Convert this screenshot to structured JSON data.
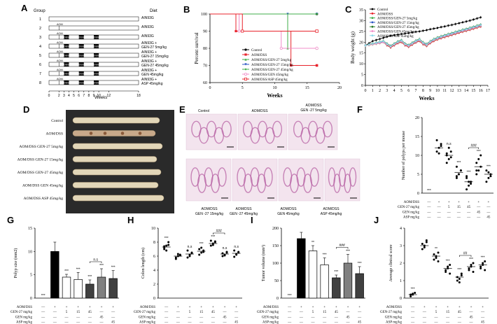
{
  "panel_letters": [
    "A",
    "B",
    "C",
    "D",
    "E",
    "F",
    "G",
    "H",
    "I",
    "J"
  ],
  "schematic": {
    "group_header": "Group",
    "diet_header": "Diet",
    "xlabel": "Weeks",
    "ticks": [
      "0",
      "2",
      "3",
      "4",
      "5",
      "6",
      "7",
      "8",
      "9",
      "10",
      "12",
      "18"
    ],
    "tick_weeks": [
      0,
      2,
      3,
      4,
      5,
      6,
      7,
      8,
      9,
      10,
      12,
      18
    ],
    "aom_label": "AOM",
    "dss_label": "DSS",
    "dss_windows": [
      [
        3,
        4
      ],
      [
        6,
        7
      ],
      [
        9,
        10
      ]
    ],
    "groups": [
      {
        "num": "1",
        "aom": false,
        "dss": false,
        "diet": [
          "AIN93G"
        ]
      },
      {
        "num": "2",
        "aom": true,
        "dss": false,
        "diet": [
          "AIN93G"
        ]
      },
      {
        "num": "3",
        "aom": true,
        "dss": true,
        "diet": [
          "AIN93G"
        ]
      },
      {
        "num": "4",
        "aom": true,
        "dss": true,
        "diet": [
          "AIN93G +",
          "GEN-27 5mg/kg"
        ]
      },
      {
        "num": "5",
        "aom": true,
        "dss": true,
        "diet": [
          "AIN93G +",
          "GEN-27 15mg/kg"
        ]
      },
      {
        "num": "6",
        "aom": true,
        "dss": true,
        "diet": [
          "AIN93G +",
          "GEN-27 45mg/kg"
        ]
      },
      {
        "num": "7",
        "aom": true,
        "dss": true,
        "diet": [
          "AIN93G +",
          "GEN 45mg/kg"
        ]
      },
      {
        "num": "8",
        "aom": true,
        "dss": true,
        "diet": [
          "AIN93G +",
          "ASP 45mg/kg"
        ]
      }
    ]
  },
  "chart_data": [
    {
      "id": "B",
      "type": "line",
      "step": true,
      "xlabel": "Weeks",
      "ylabel": "Percent survival",
      "xlim": [
        0,
        20
      ],
      "ylim": [
        60,
        100
      ],
      "xticks": [
        0,
        5,
        10,
        15,
        20
      ],
      "yticks": [
        60,
        70,
        80,
        90,
        100
      ],
      "series": [
        {
          "name": "Control",
          "color": "#000000",
          "marker": "circle",
          "x": [
            0,
            16.5
          ],
          "y": [
            100,
            100
          ]
        },
        {
          "name": "AOM/DSS",
          "color": "#e8242c",
          "marker": "square",
          "x": [
            0,
            4,
            4,
            12.5,
            12.5,
            16.5
          ],
          "y": [
            100,
            100,
            90,
            90,
            70,
            70
          ]
        },
        {
          "name": "AOM/DSS/GEN-27 5mg/kg",
          "color": "#3fae49",
          "marker": "triangle",
          "x": [
            0,
            12,
            12,
            16.5
          ],
          "y": [
            100,
            100,
            80,
            80
          ]
        },
        {
          "name": "AOM/DSS/GEN-27 15mg/kg",
          "color": "#2b56c3",
          "marker": "triangle-down",
          "x": [
            0,
            12,
            12,
            16.5
          ],
          "y": [
            100,
            100,
            100,
            100
          ]
        },
        {
          "name": "AOM/DSS/GEN-27 45mg/kg",
          "color": "#3fae49",
          "marker": "diamond",
          "x": [
            0,
            16.5
          ],
          "y": [
            100,
            100
          ]
        },
        {
          "name": "AOM/DSS/GEN 45mg/kg",
          "color": "#f08cc8",
          "marker": "circle-open",
          "x": [
            0,
            4.5,
            4.5,
            11,
            11,
            16.5
          ],
          "y": [
            100,
            100,
            90,
            90,
            80,
            80
          ]
        },
        {
          "name": "AOM/DSS/ASP 45mg/kg",
          "color": "#e8242c",
          "marker": "square-open",
          "x": [
            0,
            5,
            5,
            16.5
          ],
          "y": [
            100,
            100,
            90,
            90
          ]
        }
      ]
    },
    {
      "id": "C",
      "type": "line",
      "xlabel": "Weeks",
      "ylabel": "Body weight (g)",
      "xlim": [
        0,
        17
      ],
      "ylim": [
        0,
        35
      ],
      "xticks": [
        0,
        1,
        2,
        3,
        4,
        5,
        6,
        7,
        8,
        9,
        10,
        11,
        12,
        13,
        14,
        15,
        16,
        17
      ],
      "yticks": [
        0,
        5,
        10,
        15,
        20,
        25,
        30,
        35
      ],
      "x": [
        0,
        0.5,
        1,
        1.5,
        2,
        2.5,
        3,
        3.5,
        4,
        4.5,
        5,
        5.5,
        6,
        6.5,
        7,
        7.5,
        8,
        8.5,
        9,
        9.5,
        10,
        10.5,
        11,
        11.5,
        12,
        12.5,
        13,
        13.5,
        14,
        14.5,
        15,
        15.5,
        16
      ],
      "series": [
        {
          "name": "Control",
          "color": "#000000",
          "values": [
            18.5,
            19.5,
            20.5,
            21,
            21.5,
            22,
            22.5,
            23,
            23.3,
            23.5,
            23.8,
            24,
            24.2,
            24.5,
            24.8,
            25,
            25.3,
            25.6,
            26,
            26.3,
            26.6,
            27,
            27.3,
            27.7,
            28,
            28.4,
            28.8,
            29.2,
            29.6,
            30,
            30.5,
            31,
            31.5
          ]
        },
        {
          "name": "AOM/DSS",
          "color": "#e8242c",
          "values": [
            18.5,
            18.7,
            19,
            19.3,
            19.6,
            20,
            18.5,
            17.5,
            18.5,
            19.5,
            20,
            18.5,
            17.8,
            18.8,
            19.8,
            20.5,
            19,
            18.2,
            19.5,
            20.5,
            21.2,
            21.8,
            22.3,
            22.8,
            23.3,
            23.8,
            24.3,
            24.8,
            25.2,
            25.7,
            26.2,
            26.7,
            27.2
          ]
        },
        {
          "name": "AOM/DSS/GEN-27 5mg/kg",
          "color": "#3fae49",
          "values": [
            18.5,
            18.8,
            19.1,
            19.4,
            19.7,
            20,
            18.8,
            17.8,
            18.8,
            19.8,
            20.3,
            18.8,
            18.1,
            19.1,
            20.1,
            20.8,
            19.3,
            18.5,
            19.8,
            20.8,
            21.5,
            22.1,
            22.6,
            23.1,
            23.6,
            24.1,
            24.6,
            25.1,
            25.5,
            26,
            26.5,
            27,
            27.5
          ]
        },
        {
          "name": "AOM/DSS/GEN-27 15mg/kg",
          "color": "#2b56c3",
          "values": [
            18.5,
            18.9,
            19.2,
            19.5,
            19.8,
            20.2,
            19,
            18,
            19,
            20,
            20.6,
            19,
            18.4,
            19.4,
            20.4,
            21.1,
            19.6,
            18.8,
            20.1,
            21.1,
            21.8,
            22.4,
            22.9,
            23.4,
            23.9,
            24.4,
            24.9,
            25.4,
            25.8,
            26.3,
            26.8,
            27.3,
            27.8
          ]
        },
        {
          "name": "AOM/DSS/GEN-27 45mg/kg",
          "color": "#2a7a2a",
          "values": [
            18.5,
            19,
            19.4,
            19.8,
            20.2,
            20.6,
            19.4,
            18.4,
            19.4,
            20.4,
            21,
            19.4,
            18.8,
            19.8,
            20.8,
            21.5,
            20,
            19.2,
            20.5,
            21.5,
            22.2,
            22.8,
            23.3,
            23.8,
            24.3,
            24.8,
            25.3,
            25.8,
            26.2,
            26.7,
            27.2,
            27.7,
            28.2
          ]
        },
        {
          "name": "AOM/DSS/GEN 45mg/kg",
          "color": "#f08cc8",
          "values": [
            18.5,
            18.8,
            19.1,
            19.4,
            19.7,
            20,
            18.9,
            17.9,
            18.9,
            19.9,
            20.4,
            18.9,
            18.2,
            19.2,
            20.2,
            20.9,
            19.4,
            18.6,
            19.9,
            20.9,
            21.6,
            22.2,
            22.7,
            23.2,
            23.7,
            24.2,
            24.7,
            25.2,
            25.6,
            26.1,
            26.6,
            27.1,
            27.6
          ]
        },
        {
          "name": "AOM/DSS/ASP 45mg/kg",
          "color": "#8fd8e8",
          "values": [
            18.5,
            18.9,
            19.3,
            19.7,
            20.1,
            20.5,
            19.2,
            18.2,
            19.2,
            20.2,
            20.8,
            19.2,
            18.6,
            19.6,
            20.6,
            21.3,
            19.8,
            19,
            20.3,
            21.3,
            22,
            22.6,
            23.1,
            23.6,
            24.1,
            24.6,
            25.1,
            25.6,
            26,
            26.5,
            27,
            27.5,
            28
          ]
        }
      ]
    },
    {
      "id": "F",
      "type": "scatter",
      "ylabel": "Number of polyps per mouse",
      "ylim": [
        0,
        20
      ],
      "yticks": [
        0,
        5,
        10,
        15,
        20
      ],
      "groups": [
        {
          "mean": 0,
          "points": [],
          "sig": "***"
        },
        {
          "mean": 12,
          "points": [
            11,
            12,
            13,
            14,
            10.5,
            12.5
          ],
          "sig": ""
        },
        {
          "mean": 10,
          "points": [
            8,
            9,
            11,
            10.5,
            12,
            9.5,
            10
          ],
          "sig": "n.s"
        },
        {
          "mean": 5.5,
          "points": [
            4,
            5,
            6,
            7,
            5,
            6,
            4.5
          ],
          "sig": "***"
        },
        {
          "mean": 3,
          "points": [
            1,
            2,
            3,
            4,
            3,
            2.5,
            4.5
          ],
          "sig": "***"
        },
        {
          "mean": 7,
          "points": [
            5,
            6,
            7,
            8,
            9,
            10,
            6
          ],
          "sig": "***"
        },
        {
          "mean": 5,
          "points": [
            3,
            4,
            5,
            6,
            5.5,
            4.5
          ],
          "sig": "***"
        }
      ],
      "bracket": {
        "from": 4,
        "to": 5,
        "label": "###"
      }
    },
    {
      "id": "G",
      "type": "bar",
      "ylabel": "Polyp size (mm2)",
      "ylim": [
        0,
        15
      ],
      "yticks": [
        0,
        5,
        10,
        15
      ],
      "values": [
        0,
        10,
        4.5,
        4,
        3,
        4.5,
        4.2
      ],
      "errors": [
        0,
        2,
        0.6,
        1.5,
        0.9,
        1.8,
        1.7
      ],
      "fills": [
        "#ffffff",
        "#000000",
        "#ffffff",
        "#ffffff",
        "#404040",
        "#808080",
        "#404040"
      ],
      "sig": [
        "***",
        "",
        "***",
        "***",
        "***",
        "***",
        "***"
      ],
      "bracket": {
        "from": 4,
        "to": 5,
        "label": "n.s"
      }
    },
    {
      "id": "H",
      "type": "scatter",
      "ylabel": "Colon length (cm)",
      "ylim": [
        0,
        10
      ],
      "yticks": [
        0,
        2,
        4,
        6,
        8,
        10
      ],
      "groups": [
        {
          "mean": 7.3,
          "points": [
            7,
            7.5,
            8,
            7.2,
            6.8,
            7.6,
            7.4
          ],
          "sig": "***"
        },
        {
          "mean": 6,
          "points": [
            5.6,
            6,
            6.2,
            5.8,
            6.3,
            6.1
          ],
          "sig": ""
        },
        {
          "mean": 6.3,
          "points": [
            5.8,
            6.2,
            6.5,
            6.8,
            6,
            6.4
          ],
          "sig": "n.s"
        },
        {
          "mean": 6.7,
          "points": [
            6.2,
            6.5,
            6.8,
            7,
            7.2,
            6.6
          ],
          "sig": "***"
        },
        {
          "mean": 7.8,
          "points": [
            7.5,
            7.8,
            8,
            8.2,
            7.6,
            8.1
          ],
          "sig": "***"
        },
        {
          "mean": 6.3,
          "points": [
            6,
            6.2,
            6.5,
            6.4,
            6.1,
            6.6
          ],
          "sig": "n.s"
        },
        {
          "mean": 6.4,
          "points": [
            5.9,
            6.3,
            6.6,
            6.8,
            6.2,
            6.5
          ],
          "sig": "n.s"
        }
      ],
      "bracket": {
        "from": 4,
        "to": 5,
        "label": "###"
      }
    },
    {
      "id": "I",
      "type": "bar",
      "ylabel": "Tumor volume (mm³)",
      "ylim": [
        0,
        200
      ],
      "yticks": [
        0,
        50,
        100,
        150,
        200
      ],
      "values": [
        0,
        170,
        135,
        95,
        58,
        100,
        70
      ],
      "errors": [
        0,
        18,
        15,
        20,
        8,
        25,
        20
      ],
      "fills": [
        "#ffffff",
        "#000000",
        "#ffffff",
        "#ffffff",
        "#404040",
        "#808080",
        "#404040"
      ],
      "sig": [
        "***",
        "",
        "**",
        "***",
        "***",
        "***",
        "***"
      ],
      "bracket": {
        "from": 4,
        "to": 5,
        "label": "###"
      }
    },
    {
      "id": "J",
      "type": "scatter",
      "ylabel": "Average clinical score",
      "ylim": [
        0,
        4
      ],
      "yticks": [
        0,
        1,
        2,
        3,
        4
      ],
      "groups": [
        {
          "mean": 0.2,
          "points": [
            0.1,
            0.2,
            0.3,
            0.2,
            0.25
          ],
          "sig": "***"
        },
        {
          "mean": 3,
          "points": [
            2.8,
            3,
            3.2,
            3.1,
            2.9,
            3.3
          ],
          "sig": ""
        },
        {
          "mean": 2.4,
          "points": [
            2.2,
            2.4,
            2.6,
            2.5,
            2.3,
            2.1
          ],
          "sig": "**"
        },
        {
          "mean": 1.7,
          "points": [
            1.5,
            1.7,
            1.9,
            1.6,
            1.8,
            1.4
          ],
          "sig": "***"
        },
        {
          "mean": 1.2,
          "points": [
            1,
            1.1,
            1.3,
            1.2,
            0.9,
            1.4
          ],
          "sig": "***"
        },
        {
          "mean": 1.8,
          "points": [
            1.6,
            1.8,
            2,
            1.7,
            1.9,
            1.5
          ],
          "sig": "***"
        },
        {
          "mean": 1.9,
          "points": [
            1.7,
            1.9,
            2.1,
            1.8,
            2,
            1.6
          ],
          "sig": "***"
        }
      ],
      "bracket": {
        "from": 4,
        "to": 5,
        "label": "##"
      }
    }
  ],
  "treatment_table": {
    "row_labels": [
      "AOM/DSS",
      "GEN-27 mg/kg",
      "GEN mg/kg",
      "ASP mg/kg"
    ],
    "rows": [
      [
        "—",
        "+",
        "+",
        "+",
        "+",
        "+",
        "+"
      ],
      [
        "—",
        "—",
        "5",
        "15",
        "45",
        "—",
        "—"
      ],
      [
        "—",
        "—",
        "—",
        "—",
        "—",
        "45",
        "—"
      ],
      [
        "—",
        "—",
        "—",
        "—",
        "—",
        "—",
        "45"
      ]
    ]
  },
  "colon_panel": {
    "labels": [
      "Control",
      "AOM/DSS",
      "AOM/DSS GEN-27 5mg/kg",
      "AOM/DSS GEN-27 15mg/kg",
      "AOM/DSS GEN-27 45mg/kg",
      "AOM/DSS GEN 45mg/kg",
      "AOM/DSS ASP 45mg/kg"
    ]
  },
  "histology_panel": {
    "top_labels": [
      "Control",
      "AOM/DSS",
      "AOM/DSS",
      "GEN -27 5mg/kg"
    ],
    "bottom_labels": [
      "AOM/DSS",
      "GEN -27 15mg/kg",
      "AOM/DSS",
      "GEN -27 45mg/kg",
      "AOM/DSS",
      "GEN 45mg/kg",
      "AOM/DSS",
      "ASP 45mg/kg"
    ]
  }
}
